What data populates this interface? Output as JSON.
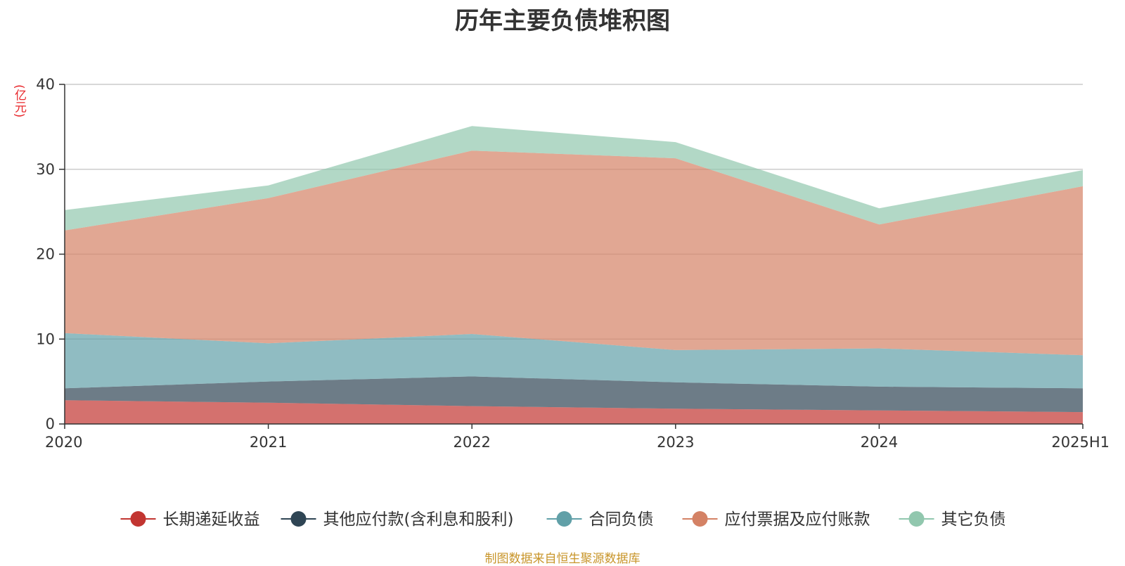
{
  "chart_data": {
    "type": "area",
    "title": "历年主要负债堆积图",
    "unit_label": "(亿元)",
    "x": [
      "2020",
      "2021",
      "2022",
      "2023",
      "2024",
      "2025H1"
    ],
    "ylim": [
      0,
      40
    ],
    "yticks": [
      "0",
      "10",
      "20",
      "30",
      "40"
    ],
    "grid": true,
    "stacked": true,
    "legend_position": "bottom",
    "series": [
      {
        "name": "长期递延收益",
        "color": "#c23531",
        "values": [
          2.8,
          2.5,
          2.1,
          1.8,
          1.6,
          1.4
        ]
      },
      {
        "name": "其他应付款(含利息和股利)",
        "color": "#2f4554",
        "values": [
          1.4,
          2.5,
          3.5,
          3.1,
          2.8,
          2.8
        ]
      },
      {
        "name": "合同负债",
        "color": "#61a0a8",
        "values": [
          6.5,
          4.5,
          5.0,
          3.8,
          4.5,
          3.9
        ]
      },
      {
        "name": "应付票据及应付账款",
        "color": "#d48265",
        "values": [
          12.1,
          17.1,
          21.6,
          22.6,
          14.6,
          19.9
        ]
      },
      {
        "name": "其它负债",
        "color": "#91c7ae",
        "values": [
          2.4,
          1.5,
          2.9,
          1.9,
          1.9,
          1.9
        ]
      }
    ]
  },
  "source_note": "制图数据来自恒生聚源数据库"
}
